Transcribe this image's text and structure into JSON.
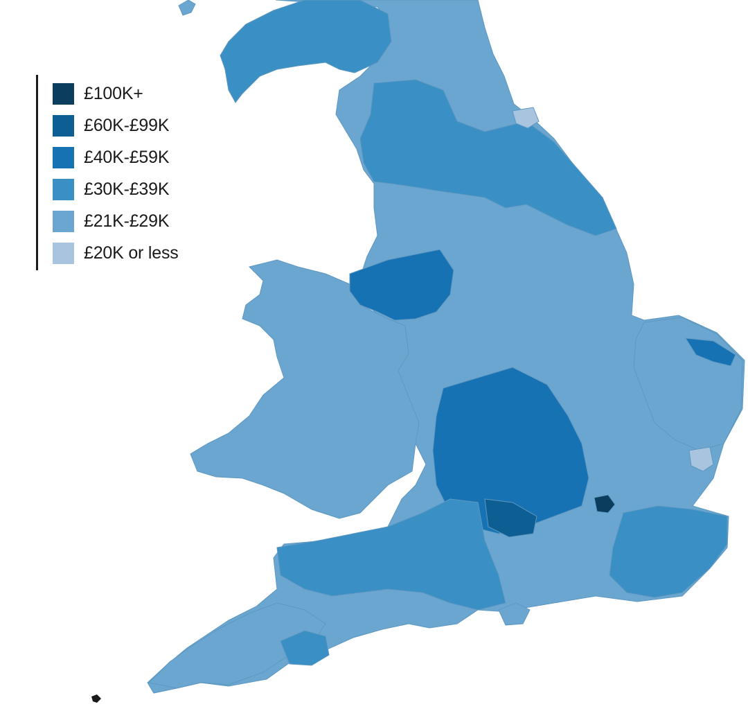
{
  "map": {
    "colors": {
      "band_100k_plus": "#0a3d5e",
      "band_60k_99k": "#0d5e93",
      "band_40k_59k": "#1772b3",
      "band_30k_39k": "#3a8fc4",
      "band_21k_29k": "#6aa6cf",
      "band_20k_or_less": "#a8c4de",
      "background": "#ffffff"
    }
  },
  "legend": {
    "items": [
      {
        "label": "£100K+",
        "color": "#0a3d5e"
      },
      {
        "label": "£60K-£99K",
        "color": "#0d5e93"
      },
      {
        "label": "£40K-£59K",
        "color": "#1772b3"
      },
      {
        "label": "£30K-£39K",
        "color": "#3a8fc4"
      },
      {
        "label": "£21K-£29K",
        "color": "#6aa6cf"
      },
      {
        "label": "£20K or less",
        "color": "#a8c4de"
      }
    ]
  }
}
